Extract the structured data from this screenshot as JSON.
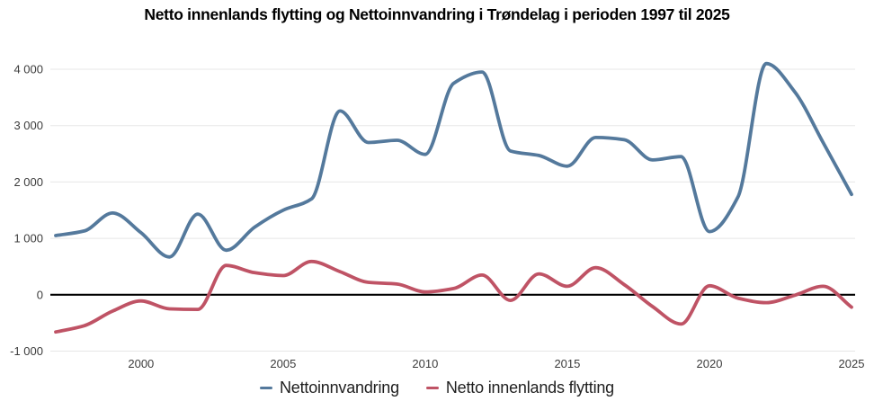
{
  "title": "Netto innenlands flytting og Nettoinnvandring i Trøndelag i perioden 1997 til 2025",
  "colors": {
    "nettoinnvandring": "#54799c",
    "netto_innenlands_flytting": "#bf5365",
    "grid": "#e7e7e7",
    "zero_line": "#000000",
    "tick_text": "#3c3c3c",
    "legend_text": "#1f1f1f",
    "background": "#ffffff"
  },
  "chart_data": {
    "type": "line",
    "title": "Netto innenlands flytting og Nettoinnvandring i Trøndelag i perioden 1997 til 2025",
    "xlabel": "",
    "ylabel": "",
    "x": [
      1997,
      1998,
      1999,
      2000,
      2001,
      2002,
      2003,
      2004,
      2005,
      2006,
      2007,
      2008,
      2009,
      2010,
      2011,
      2012,
      2013,
      2014,
      2015,
      2016,
      2017,
      2018,
      2019,
      2020,
      2021,
      2022,
      2023,
      2024,
      2025
    ],
    "series": [
      {
        "name": "Nettoinnvandring",
        "color": "#54799c",
        "values": [
          1050,
          1130,
          1450,
          1100,
          670,
          1430,
          790,
          1200,
          1500,
          1700,
          3260,
          2700,
          2740,
          2490,
          3750,
          3950,
          2550,
          2470,
          2280,
          2790,
          2750,
          2390,
          2450,
          1120,
          1730,
          4100,
          3600,
          2700,
          1780
        ]
      },
      {
        "name": "Netto innenlands flytting",
        "color": "#bf5365",
        "values": [
          -660,
          -550,
          -290,
          -110,
          -250,
          -260,
          520,
          390,
          340,
          590,
          410,
          220,
          190,
          50,
          110,
          350,
          -100,
          370,
          150,
          480,
          180,
          -210,
          -520,
          160,
          -60,
          -140,
          -10,
          150,
          -220
        ]
      }
    ],
    "ylim": [
      -1000,
      4000
    ],
    "xlim": [
      1997,
      2025
    ],
    "y_ticks": [
      -1000,
      0,
      1000,
      2000,
      3000,
      4000
    ],
    "y_tick_labels": [
      "-1 000",
      "0",
      "1 000",
      "2 000",
      "3 000",
      "4 000"
    ],
    "x_ticks": [
      2000,
      2005,
      2010,
      2015,
      2020,
      2025
    ],
    "x_tick_labels": [
      "2000",
      "2005",
      "2010",
      "2015",
      "2020",
      "2025"
    ],
    "grid": "horizontal",
    "legend_position": "bottom",
    "smooth": true
  },
  "legend": {
    "items": [
      {
        "label": "Nettoinnvandring"
      },
      {
        "label": "Netto innenlands flytting"
      }
    ]
  }
}
